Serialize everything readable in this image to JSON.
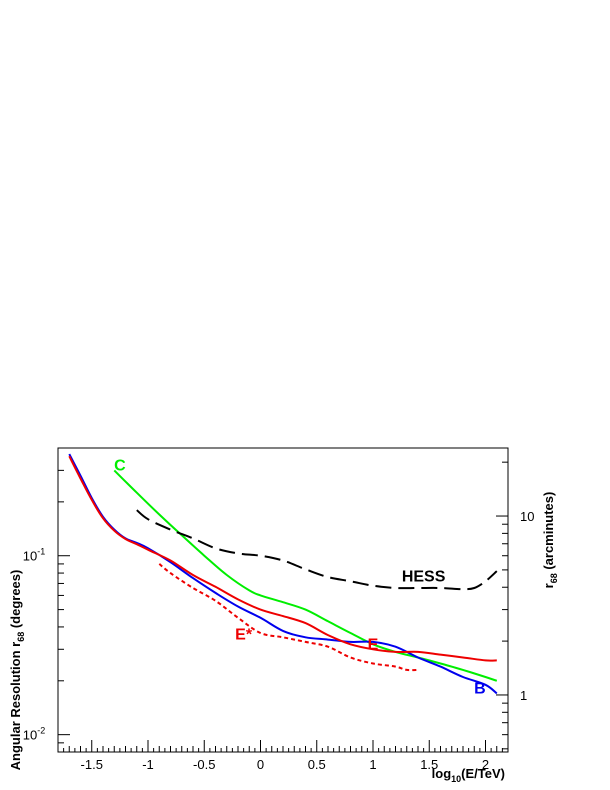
{
  "chart_data": {
    "type": "line",
    "title": "",
    "xlabel": "log",
    "xlabel_sub": "10",
    "xlabel_tail": "(E/TeV)",
    "ylabel": "Angular Resolution r",
    "ylabel_sub": "68",
    "ylabel_tail": " (degrees)",
    "y2label": "r",
    "y2label_sub": "68",
    "y2label_tail": " (arcminutes)",
    "xlim": [
      -1.8,
      2.2
    ],
    "ylim": [
      0.008,
      0.4
    ],
    "y_scale": "log",
    "y2_scale": "log",
    "grid": false,
    "x_ticks": [
      -1.5,
      -1,
      -0.5,
      0,
      0.5,
      1,
      1.5,
      2
    ],
    "x_tick_labels": [
      "-1.5",
      "-1",
      "-0.5",
      "0",
      "0.5",
      "1",
      "1.5",
      "2"
    ],
    "y_ticks": [
      0.01,
      0.1
    ],
    "y_tick_labels": [
      {
        "base": "10",
        "exp": "-2"
      },
      {
        "base": "10",
        "exp": "-1"
      }
    ],
    "y2_ticks_arcmin": [
      1,
      10
    ],
    "y2_tick_labels": [
      "1",
      "10"
    ],
    "series": [
      {
        "name": "C",
        "color": "#00ee00",
        "dash": "solid",
        "x": [
          -1.3,
          -1.1,
          -0.9,
          -0.7,
          -0.5,
          -0.3,
          -0.1,
          0.0,
          0.2,
          0.4,
          0.6,
          0.8,
          1.0,
          1.2,
          1.4,
          1.6,
          1.8,
          2.0,
          2.1
        ],
        "y": [
          0.3,
          0.225,
          0.17,
          0.13,
          0.1,
          0.078,
          0.064,
          0.06,
          0.055,
          0.05,
          0.043,
          0.037,
          0.032,
          0.029,
          0.027,
          0.025,
          0.023,
          0.021,
          0.02
        ]
      },
      {
        "name": "HESS",
        "color": "#000000",
        "dash": "long-dash",
        "x": [
          -1.1,
          -1.0,
          -0.8,
          -0.6,
          -0.4,
          -0.2,
          0.0,
          0.2,
          0.4,
          0.6,
          0.8,
          1.0,
          1.2,
          1.4,
          1.6,
          1.8,
          1.9,
          2.0,
          2.1
        ],
        "y": [
          0.18,
          0.16,
          0.14,
          0.125,
          0.11,
          0.103,
          0.1,
          0.094,
          0.084,
          0.076,
          0.072,
          0.068,
          0.066,
          0.066,
          0.066,
          0.065,
          0.066,
          0.072,
          0.082
        ]
      },
      {
        "name": "B",
        "color": "#0000ee",
        "dash": "solid",
        "x": [
          -1.7,
          -1.6,
          -1.5,
          -1.4,
          -1.3,
          -1.2,
          -1.1,
          -1.0,
          -0.8,
          -0.6,
          -0.4,
          -0.2,
          0.0,
          0.2,
          0.4,
          0.6,
          0.8,
          1.0,
          1.2,
          1.4,
          1.6,
          1.8,
          2.0,
          2.1
        ],
        "y": [
          0.37,
          0.28,
          0.21,
          0.165,
          0.14,
          0.125,
          0.118,
          0.11,
          0.092,
          0.075,
          0.062,
          0.052,
          0.045,
          0.038,
          0.035,
          0.034,
          0.033,
          0.033,
          0.031,
          0.027,
          0.024,
          0.021,
          0.019,
          0.017
        ]
      },
      {
        "name": "E",
        "color": "#ee0000",
        "dash": "solid",
        "x": [
          -1.7,
          -1.6,
          -1.5,
          -1.4,
          -1.3,
          -1.2,
          -1.1,
          -1.0,
          -0.8,
          -0.6,
          -0.4,
          -0.2,
          0.0,
          0.2,
          0.4,
          0.6,
          0.8,
          1.0,
          1.2,
          1.4,
          1.6,
          1.8,
          2.0,
          2.1
        ],
        "y": [
          0.36,
          0.27,
          0.205,
          0.162,
          0.138,
          0.124,
          0.116,
          0.108,
          0.094,
          0.078,
          0.067,
          0.057,
          0.05,
          0.046,
          0.042,
          0.036,
          0.032,
          0.03,
          0.029,
          0.029,
          0.028,
          0.027,
          0.026,
          0.026
        ]
      },
      {
        "name": "E*",
        "color": "#ee0000",
        "dash": "dotted",
        "x": [
          -0.9,
          -0.8,
          -0.6,
          -0.4,
          -0.2,
          0.0,
          0.2,
          0.4,
          0.6,
          0.8,
          1.0,
          1.2,
          1.3,
          1.4
        ],
        "y": [
          0.09,
          0.08,
          0.066,
          0.056,
          0.045,
          0.037,
          0.035,
          0.033,
          0.031,
          0.027,
          0.025,
          0.024,
          0.023,
          0.023
        ]
      }
    ],
    "labels": [
      {
        "text": "C",
        "color": "#00ee00",
        "at_x": -1.25,
        "at_y": 0.3
      },
      {
        "text": "HESS",
        "color": "#000000",
        "at_x": 1.45,
        "at_y": 0.072
      },
      {
        "text": "E",
        "color": "#ee0000",
        "at_x": 1.0,
        "at_y": 0.03
      },
      {
        "text": "E*",
        "color": "#ee0000",
        "at_x": -0.15,
        "at_y": 0.034
      },
      {
        "text": "B",
        "color": "#0000ee",
        "at_x": 1.95,
        "at_y": 0.017
      }
    ]
  }
}
